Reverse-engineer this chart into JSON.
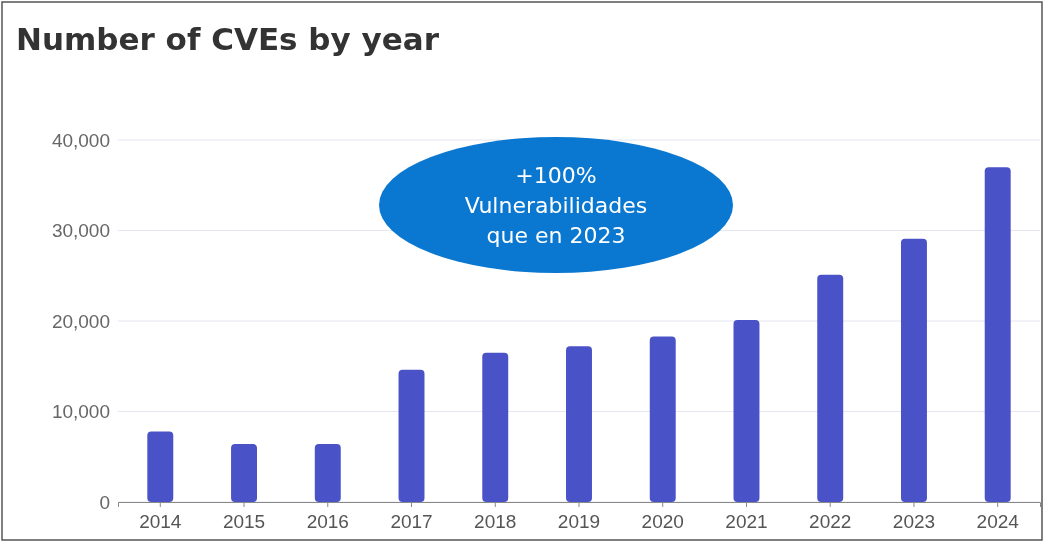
{
  "chart_data": {
    "type": "bar",
    "title": "Number of CVEs by year",
    "categories": [
      "2014",
      "2015",
      "2016",
      "2017",
      "2018",
      "2019",
      "2020",
      "2021",
      "2022",
      "2023",
      "2024"
    ],
    "values": [
      7800,
      6400,
      6400,
      14600,
      16500,
      17200,
      18300,
      20100,
      25100,
      29100,
      37000
    ],
    "color": "#4a52c8",
    "ylim": [
      0,
      40000
    ],
    "yticks": [
      {
        "value": 0,
        "label": "0"
      },
      {
        "value": 10000,
        "label": "10,000"
      },
      {
        "value": 20000,
        "label": "20,000"
      },
      {
        "value": 30000,
        "label": "30,000"
      },
      {
        "value": 40000,
        "label": "40,000"
      }
    ],
    "grid": "y",
    "annotations": [
      "+100%\nVulnerabilidades\nque en 2023"
    ]
  }
}
